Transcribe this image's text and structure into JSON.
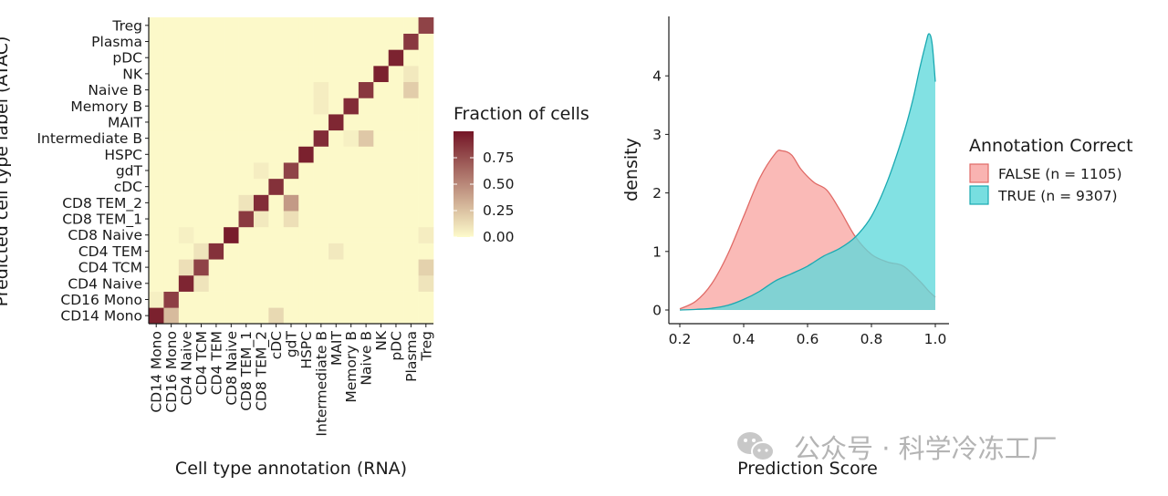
{
  "watermark": "公众号 · 科学冷冻工厂",
  "chart_data": [
    {
      "type": "heatmap",
      "title": "",
      "xlabel": "Cell type annotation (RNA)",
      "ylabel": "Predicted cell type label (ATAC)",
      "categories": [
        "CD14 Mono",
        "CD16 Mono",
        "CD4 Naive",
        "CD4 TCM",
        "CD4 TEM",
        "CD8 Naive",
        "CD8 TEM_1",
        "CD8 TEM_2",
        "cDC",
        "gdT",
        "HSPC",
        "Intermediate B",
        "MAIT",
        "Memory B",
        "Naive B",
        "NK",
        "pDC",
        "Plasma",
        "Treg"
      ],
      "legend_title": "Fraction of cells",
      "legend_ticks": [
        "0.00",
        "0.25",
        "0.50",
        "0.75"
      ],
      "color_low": "#fdfbcb",
      "color_high": "#741526",
      "value_range": [
        0,
        1
      ],
      "diagonal": [
        0.95,
        0.82,
        0.93,
        0.8,
        0.88,
        0.97,
        0.84,
        0.9,
        0.88,
        0.8,
        0.95,
        0.9,
        0.92,
        0.9,
        0.85,
        0.95,
        0.94,
        0.85,
        0.8
      ],
      "off_diagonal": [
        {
          "row": "CD14 Mono",
          "col": "CD16 Mono",
          "value": 0.28
        },
        {
          "row": "CD16 Mono",
          "col": "CD14 Mono",
          "value": 0.05
        },
        {
          "row": "CD4 Naive",
          "col": "CD4 TCM",
          "value": 0.1
        },
        {
          "row": "CD4 TCM",
          "col": "Treg",
          "value": 0.18
        },
        {
          "row": "CD4 TCM",
          "col": "CD4 Naive",
          "value": 0.12
        },
        {
          "row": "CD4 TEM",
          "col": "MAIT",
          "value": 0.08
        },
        {
          "row": "CD4 TEM",
          "col": "CD4 TCM",
          "value": 0.1
        },
        {
          "row": "CD8 Naive",
          "col": "CD4 Naive",
          "value": 0.05
        },
        {
          "row": "CD8 TEM_1",
          "col": "gdT",
          "value": 0.12
        },
        {
          "row": "CD8 TEM_1",
          "col": "CD8 TEM_2",
          "value": 0.08
        },
        {
          "row": "CD8 TEM_2",
          "col": "CD8 TEM_1",
          "value": 0.1
        },
        {
          "row": "CD8 TEM_2",
          "col": "gdT",
          "value": 0.42
        },
        {
          "row": "gdT",
          "col": "CD8 TEM_2",
          "value": 0.06
        },
        {
          "row": "Intermediate B",
          "col": "Naive B",
          "value": 0.22
        },
        {
          "row": "Intermediate B",
          "col": "Memory B",
          "value": 0.05
        },
        {
          "row": "Memory B",
          "col": "Intermediate B",
          "value": 0.06
        },
        {
          "row": "Naive B",
          "col": "Plasma",
          "value": 0.2
        },
        {
          "row": "Naive B",
          "col": "Intermediate B",
          "value": 0.06
        },
        {
          "row": "NK",
          "col": "Plasma",
          "value": 0.08
        },
        {
          "row": "CD14 Mono",
          "col": "cDC",
          "value": 0.15
        },
        {
          "row": "CD4 Naive",
          "col": "Treg",
          "value": 0.1
        },
        {
          "row": "CD8 Naive",
          "col": "Treg",
          "value": 0.06
        }
      ]
    },
    {
      "type": "area",
      "title": "",
      "xlabel": "Prediction Score",
      "ylabel": "density",
      "xlim": [
        0.2,
        1.0
      ],
      "ylim": [
        0,
        4.75
      ],
      "xticks": [
        "0.2",
        "0.4",
        "0.6",
        "0.8",
        "1.0"
      ],
      "yticks": [
        "0",
        "1",
        "2",
        "3",
        "4"
      ],
      "legend_title": "Annotation Correct",
      "legend_position": "right",
      "series": [
        {
          "name": "FALSE (n = 1105)",
          "fill": "#f8a6a3",
          "stroke": "#e06a66",
          "x": [
            0.2,
            0.25,
            0.3,
            0.35,
            0.4,
            0.45,
            0.5,
            0.52,
            0.55,
            0.58,
            0.62,
            0.66,
            0.7,
            0.75,
            0.8,
            0.85,
            0.9,
            0.95,
            0.98,
            1.0
          ],
          "y": [
            0.02,
            0.15,
            0.45,
            0.95,
            1.6,
            2.25,
            2.68,
            2.72,
            2.65,
            2.4,
            2.18,
            2.05,
            1.72,
            1.25,
            0.95,
            0.82,
            0.75,
            0.5,
            0.32,
            0.22
          ]
        },
        {
          "name": "TRUE (n = 9307)",
          "fill": "#5fd8db",
          "stroke": "#1aa9b1",
          "x": [
            0.2,
            0.25,
            0.3,
            0.35,
            0.4,
            0.45,
            0.5,
            0.55,
            0.6,
            0.65,
            0.7,
            0.75,
            0.8,
            0.85,
            0.9,
            0.93,
            0.95,
            0.97,
            0.98,
            0.99,
            1.0
          ],
          "y": [
            0.0,
            0.01,
            0.03,
            0.08,
            0.18,
            0.32,
            0.5,
            0.62,
            0.75,
            0.92,
            1.05,
            1.25,
            1.6,
            2.2,
            3.0,
            3.6,
            4.1,
            4.55,
            4.72,
            4.55,
            3.9
          ]
        }
      ]
    }
  ]
}
